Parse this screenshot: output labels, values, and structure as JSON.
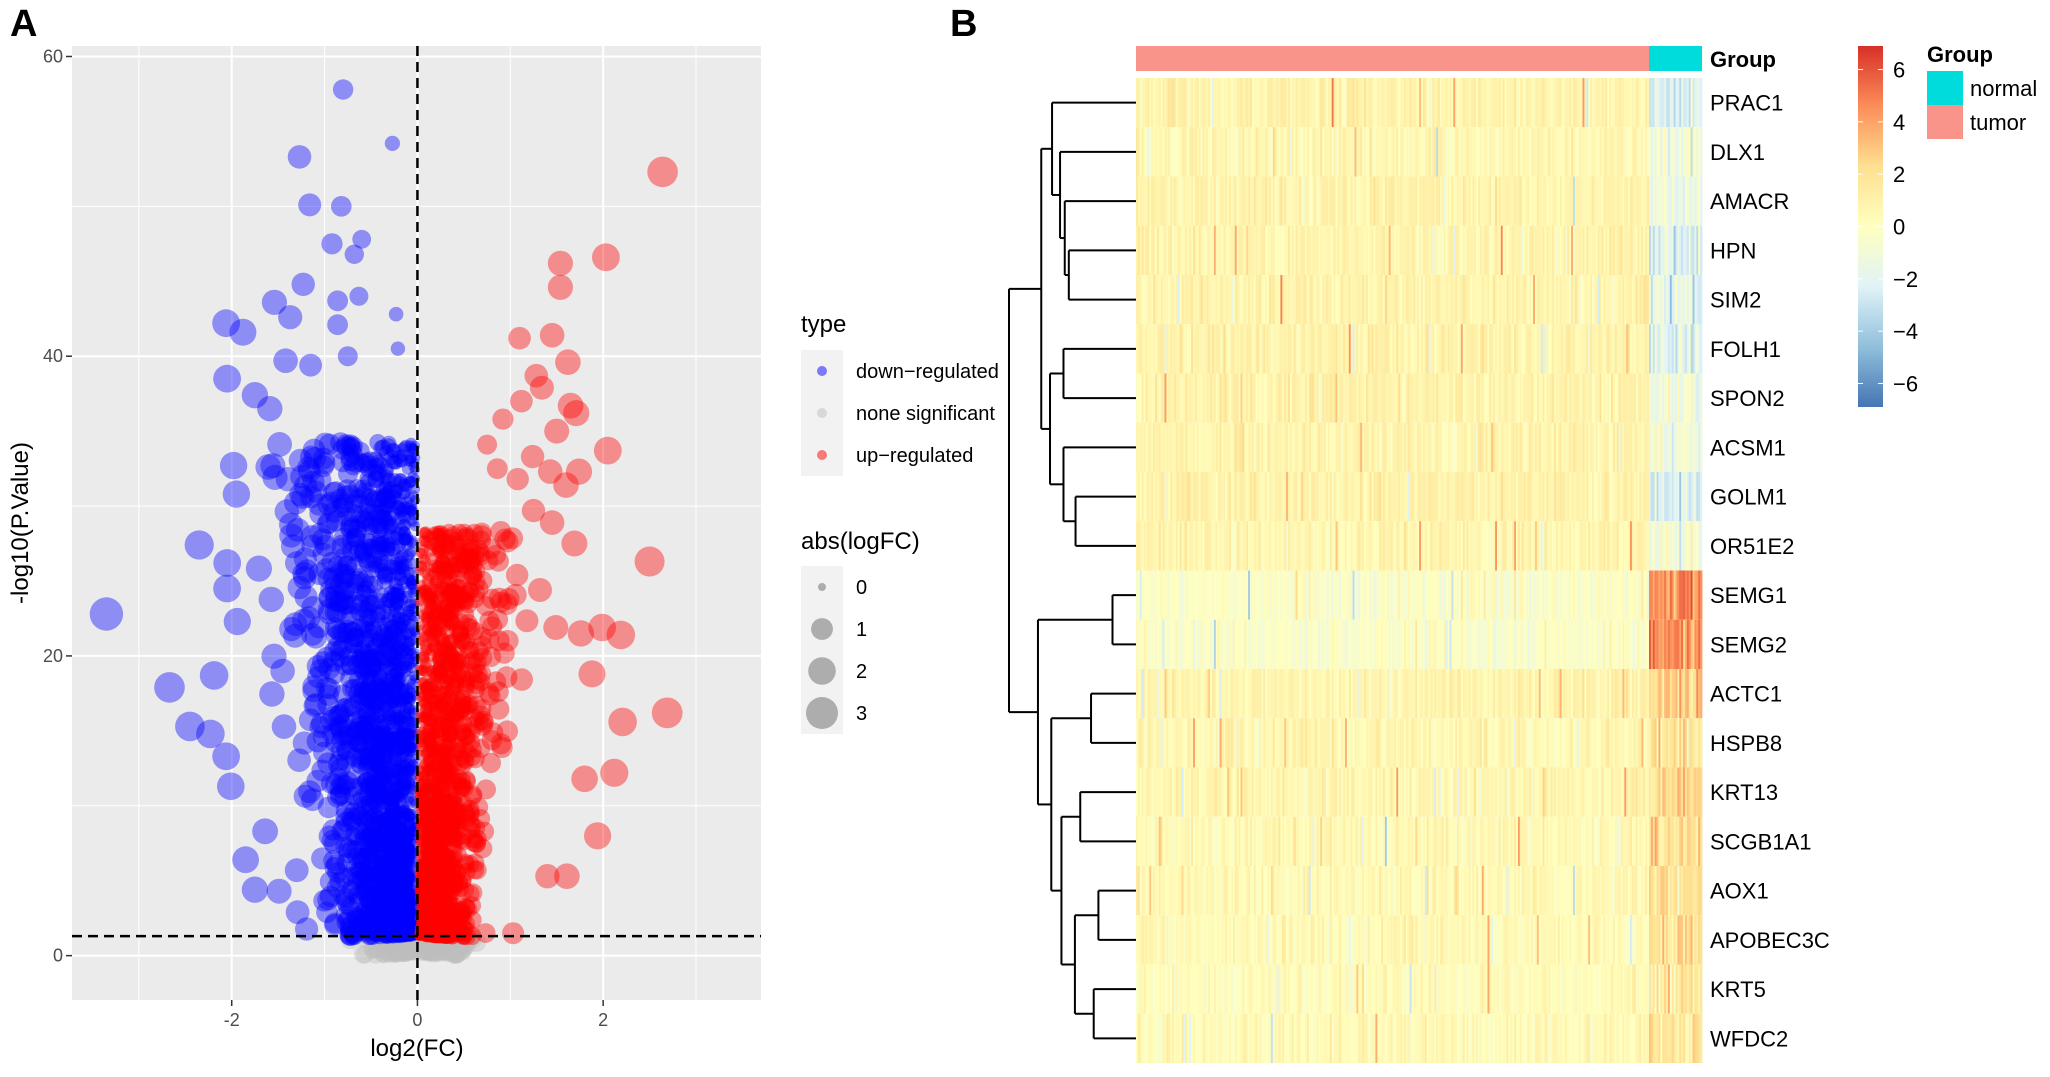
{
  "panels": {
    "a_label": "A",
    "b_label": "B"
  },
  "chart_data": [
    {
      "type": "scatter",
      "subtype": "volcano",
      "xlabel": "log2(FC)",
      "ylabel": "-log10(P.Value)",
      "xlim": [
        -3.72,
        3.7
      ],
      "ylim": [
        -2.96,
        60.7
      ],
      "x_ticks": [
        "-2",
        "0",
        "2"
      ],
      "x_tick_values": [
        -2,
        0,
        2
      ],
      "y_ticks": [
        "0",
        "20",
        "40",
        "60"
      ],
      "y_tick_values": [
        0,
        20,
        40,
        60
      ],
      "grid": true,
      "threshold_lines": {
        "x": 0,
        "y": 1.3,
        "style": "dashed"
      },
      "colors": {
        "down-regulated": "#0000ff",
        "none significant": "#bebebe",
        "up-regulated": "#ff0000",
        "panel_bg": "#ebebeb"
      },
      "legend": {
        "placement": "right",
        "type_title": "type",
        "type_items": [
          "down−regulated",
          "none significant",
          "up−regulated"
        ],
        "size_title": "abs(logFC)",
        "size_items": [
          "0",
          "1",
          "2",
          "3"
        ],
        "size_values": [
          0,
          1,
          2,
          3
        ]
      },
      "points_down": [
        [
          -0.8,
          57.8
        ],
        [
          -0.27,
          54.2
        ],
        [
          -1.27,
          53.3
        ],
        [
          -1.16,
          50.1
        ],
        [
          -0.82,
          50
        ],
        [
          -0.92,
          47.5
        ],
        [
          -0.6,
          47.8
        ],
        [
          -0.68,
          46.8
        ],
        [
          -1.23,
          44.8
        ],
        [
          -1.54,
          43.6
        ],
        [
          -1.37,
          42.6
        ],
        [
          -2.06,
          42.2
        ],
        [
          -1.88,
          41.6
        ],
        [
          -0.86,
          43.7
        ],
        [
          -0.63,
          44
        ],
        [
          -0.86,
          42.1
        ],
        [
          -0.23,
          42.8
        ],
        [
          -0.21,
          40.5
        ],
        [
          -2.05,
          38.5
        ],
        [
          -1.42,
          39.7
        ],
        [
          -1.15,
          39.4
        ],
        [
          -0.75,
          40
        ],
        [
          -1.75,
          37.4
        ],
        [
          -1.59,
          36.5
        ],
        [
          -1.98,
          32.7
        ],
        [
          -1.95,
          30.8
        ],
        [
          -2.35,
          27.4
        ],
        [
          -3.35,
          22.8
        ],
        [
          -2.67,
          17.9
        ],
        [
          -2.19,
          18.7
        ],
        [
          -2.45,
          15.3
        ],
        [
          -2.23,
          14.8
        ],
        [
          -2.06,
          13.3
        ],
        [
          -2.01,
          11.3
        ],
        [
          -1.94,
          22.3
        ],
        [
          -2.05,
          24.5
        ],
        [
          -1.85,
          6.4
        ],
        [
          -1.75,
          4.4
        ],
        [
          -1.49,
          4.3
        ],
        [
          -1.3,
          5.7
        ],
        [
          -1.29,
          2.9
        ],
        [
          -1.64,
          8.3
        ]
      ],
      "points_up": [
        [
          2.64,
          52.3
        ],
        [
          2.03,
          46.6
        ],
        [
          1.54,
          46.2
        ],
        [
          1.54,
          44.6
        ],
        [
          1.1,
          41.2
        ],
        [
          1.45,
          41.4
        ],
        [
          1.62,
          39.6
        ],
        [
          1.28,
          38.7
        ],
        [
          1.34,
          37.9
        ],
        [
          1.12,
          37
        ],
        [
          1.65,
          36.7
        ],
        [
          1.71,
          36.2
        ],
        [
          0.92,
          35.8
        ],
        [
          1.5,
          35
        ],
        [
          2.05,
          33.7
        ],
        [
          1.24,
          33.3
        ],
        [
          0.75,
          34.1
        ],
        [
          0.86,
          32.5
        ],
        [
          1.43,
          32.3
        ],
        [
          1.74,
          32.3
        ],
        [
          1.6,
          31.4
        ],
        [
          1.08,
          31.8
        ],
        [
          1.25,
          29.7
        ],
        [
          1.45,
          28.9
        ],
        [
          1.69,
          27.5
        ],
        [
          2.5,
          26.3
        ],
        [
          1.32,
          24.4
        ],
        [
          1.99,
          21.9
        ],
        [
          2.19,
          21.4
        ],
        [
          1.76,
          21.5
        ],
        [
          1.49,
          21.9
        ],
        [
          1.88,
          18.8
        ],
        [
          2.69,
          16.2
        ],
        [
          2.21,
          15.6
        ],
        [
          2.12,
          12.2
        ],
        [
          1.8,
          11.8
        ],
        [
          1.94,
          8
        ],
        [
          1.61,
          5.3
        ],
        [
          1.03,
          1.5
        ],
        [
          1.4,
          5.3
        ]
      ]
    },
    {
      "type": "heatmap",
      "annotation_title": "Group",
      "groups": [
        {
          "name": "tumor",
          "color": "#f8948a"
        },
        {
          "name": "normal",
          "color": "#00dcdc"
        }
      ],
      "group_legend_title": "Group",
      "group_legend_items": [
        {
          "name": "normal",
          "color": "#00dcdc"
        },
        {
          "name": "tumor",
          "color": "#f8948a"
        }
      ],
      "colorbar_ticks": [
        "6",
        "4",
        "2",
        "0",
        "−2",
        "−4",
        "−6"
      ],
      "colorbar_values": [
        6,
        4,
        2,
        0,
        -2,
        -4,
        -6
      ],
      "colorbar_range": [
        -6.9,
        6.9
      ],
      "colorscale": [
        "#4575b4",
        "#91bfdb",
        "#e0f3f8",
        "#ffffbf",
        "#fee090",
        "#fc8d59",
        "#d73027"
      ],
      "rows": [
        {
          "gene": "PRAC1",
          "tumor_mean": 0.8,
          "normal_mean": -2.5
        },
        {
          "gene": "DLX1",
          "tumor_mean": 0.6,
          "normal_mean": -1.0
        },
        {
          "gene": "AMACR",
          "tumor_mean": 0.8,
          "normal_mean": -1.0
        },
        {
          "gene": "HPN",
          "tumor_mean": 0.8,
          "normal_mean": -2.0
        },
        {
          "gene": "SIM2",
          "tumor_mean": 0.8,
          "normal_mean": -2.0
        },
        {
          "gene": "FOLH1",
          "tumor_mean": 0.9,
          "normal_mean": -2.0
        },
        {
          "gene": "SPON2",
          "tumor_mean": 0.9,
          "normal_mean": -1.0
        },
        {
          "gene": "ACSM1",
          "tumor_mean": 0.8,
          "normal_mean": -1.0
        },
        {
          "gene": "GOLM1",
          "tumor_mean": 0.9,
          "normal_mean": -2.5
        },
        {
          "gene": "OR51E2",
          "tumor_mean": 0.7,
          "normal_mean": -1.0
        },
        {
          "gene": "SEMG1",
          "tumor_mean": -0.3,
          "normal_mean": 4.5
        },
        {
          "gene": "SEMG2",
          "tumor_mean": -0.3,
          "normal_mean": 4.5
        },
        {
          "gene": "ACTC1",
          "tumor_mean": 0.7,
          "normal_mean": 2.5
        },
        {
          "gene": "HSPB8",
          "tumor_mean": 0.6,
          "normal_mean": 2.0
        },
        {
          "gene": "KRT13",
          "tumor_mean": 0.6,
          "normal_mean": 2.3
        },
        {
          "gene": "SCGB1A1",
          "tumor_mean": 0.4,
          "normal_mean": 2.0
        },
        {
          "gene": "AOX1",
          "tumor_mean": 0.4,
          "normal_mean": 2.0
        },
        {
          "gene": "APOBEC3C",
          "tumor_mean": 0.4,
          "normal_mean": 2.0
        },
        {
          "gene": "KRT5",
          "tumor_mean": 0.2,
          "normal_mean": 1.5
        },
        {
          "gene": "WFDC2",
          "tumor_mean": 0.4,
          "normal_mean": 2.0
        }
      ],
      "row_dendrogram": {
        "h": 1.0,
        "children": [
          {
            "h": 0.746,
            "children": [
              {
                "h": 0.661,
                "children": [
                  "PRAC1",
                  {
                    "h": 0.598,
                    "children": [
                      "DLX1",
                      {
                        "h": 0.561,
                        "children": [
                          "AMACR",
                          {
                            "h": 0.529,
                            "children": [
                              "HPN",
                              "SIM2"
                            ]
                          }
                        ]
                      }
                    ]
                  }
                ]
              },
              {
                "h": 0.677,
                "children": [
                  {
                    "h": 0.571,
                    "children": [
                      "FOLH1",
                      "SPON2"
                    ]
                  },
                  {
                    "h": 0.571,
                    "children": [
                      "ACSM1",
                      {
                        "h": 0.476,
                        "children": [
                          "GOLM1",
                          "OR51E2"
                        ]
                      }
                    ]
                  }
                ]
              }
            ]
          },
          {
            "h": 0.772,
            "children": [
              {
                "h": 0.185,
                "children": [
                  "SEMG1",
                  "SEMG2"
                ]
              },
              {
                "h": 0.667,
                "children": [
                  {
                    "h": 0.354,
                    "children": [
                      "ACTC1",
                      "HSPB8"
                    ]
                  },
                  {
                    "h": 0.587,
                    "children": [
                      {
                        "h": 0.439,
                        "children": [
                          "KRT13",
                          "SCGB1A1"
                        ]
                      },
                      {
                        "h": 0.481,
                        "children": [
                          {
                            "h": 0.296,
                            "children": [
                              "AOX1",
                              "APOBEC3C"
                            ]
                          },
                          {
                            "h": 0.333,
                            "children": [
                              "KRT5",
                              "WFDC2"
                            ]
                          }
                        ]
                      }
                    ]
                  }
                ]
              }
            ]
          }
        ]
      }
    }
  ]
}
